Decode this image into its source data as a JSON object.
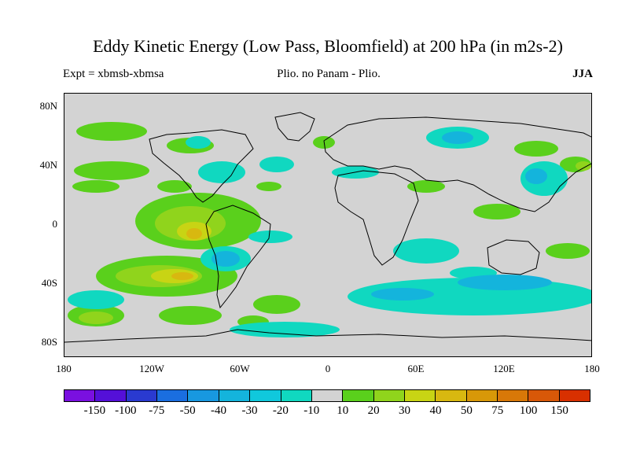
{
  "title": "Eddy Kinetic Energy (Low Pass, Bloomfield) at 200 hPa (in m2s-2)",
  "subtitle_left": "Expt = xbmsb-xbmsa",
  "subtitle_center": "Plio. no Panam - Plio.",
  "subtitle_right": "JJA",
  "lat_labels": [
    "80N",
    "40N",
    "0",
    "40S",
    "80S"
  ],
  "lon_labels": [
    "180",
    "120W",
    "60W",
    "0",
    "60E",
    "120E",
    "180"
  ],
  "colorbar": {
    "colors": [
      "#7a10e0",
      "#5410d8",
      "#2a3ad0",
      "#1a6ee0",
      "#1898e0",
      "#14b4dc",
      "#10c8dc",
      "#10d8c0",
      "#d3d3d3",
      "#5ad01c",
      "#90d41c",
      "#c8d414",
      "#d8b810",
      "#d89808",
      "#d87808",
      "#d85808",
      "#d83000"
    ],
    "labels": [
      "-150",
      "-100",
      "-75",
      "-50",
      "-40",
      "-30",
      "-20",
      "-10",
      "10",
      "20",
      "30",
      "40",
      "50",
      "75",
      "100",
      "150"
    ]
  },
  "field_colors": {
    "neg_light": "#10d8c0",
    "neg_mid": "#14b4dc",
    "neg_strong": "#1898e0",
    "pos_light": "#5ad01c",
    "pos_mid": "#90d41c",
    "pos_strong": "#c8d414",
    "pos_max": "#d8b810",
    "coast": "#000000",
    "background": "#d3d3d3"
  }
}
